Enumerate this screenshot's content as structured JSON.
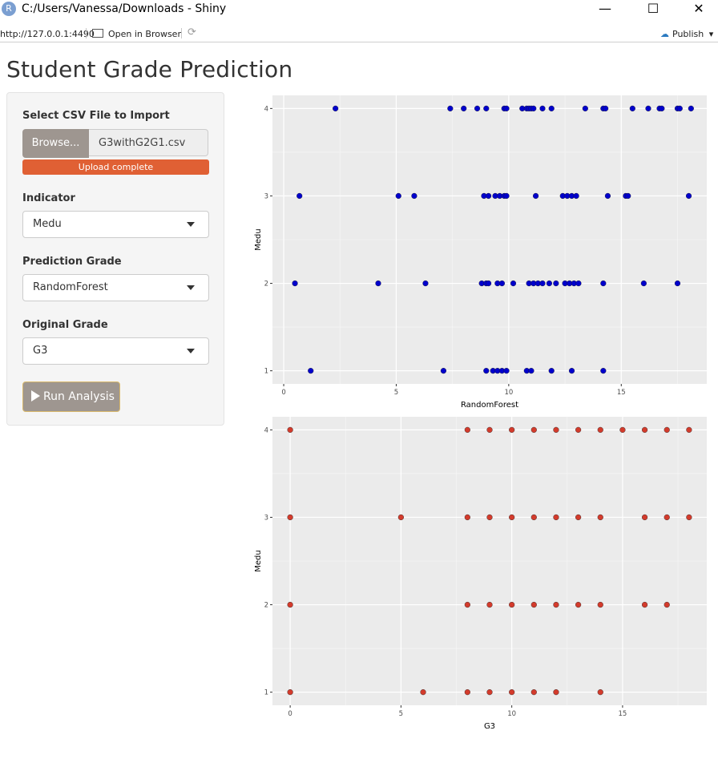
{
  "window": {
    "title": "C:/Users/Vanessa/Downloads - Shiny",
    "app_icon_letter": "R",
    "minimize": "—",
    "maximize": "☐",
    "close": "✕"
  },
  "toolbar": {
    "url": "http://127.0.0.1:4490",
    "open_in_browser": "Open in Browser",
    "publish": "Publish",
    "publish_caret": "▾"
  },
  "page": {
    "title": "Student Grade Prediction"
  },
  "sidebar": {
    "file_label": "Select CSV File to Import",
    "browse_label": "Browse...",
    "file_name": "G3withG2G1.csv",
    "progress_text": "Upload complete",
    "indicator_label": "Indicator",
    "indicator_value": "Medu",
    "prediction_label": "Prediction Grade",
    "prediction_value": "RandomForest",
    "original_label": "Original Grade",
    "original_value": "G3",
    "run_label": "Run Analysis"
  },
  "colors": {
    "accent_progress": "#e06034",
    "button": "#9e9690",
    "blue_points": "#0000cc",
    "red_points": "#d33b2c",
    "panel_bg": "#ebebeb"
  },
  "chart_data": [
    {
      "type": "scatter",
      "xlabel": "RandomForest",
      "ylabel": "Medu",
      "xlim": [
        -0.5,
        18.8
      ],
      "ylim": [
        0.85,
        4.15
      ],
      "xticks": [
        0,
        5,
        10,
        15
      ],
      "yticks": [
        1,
        2,
        3,
        4
      ],
      "color": "#0000cc",
      "points": [
        [
          2.3,
          4
        ],
        [
          7.4,
          4
        ],
        [
          8.0,
          4
        ],
        [
          8.6,
          4
        ],
        [
          9.0,
          4
        ],
        [
          9.8,
          4
        ],
        [
          9.9,
          4
        ],
        [
          10.6,
          4
        ],
        [
          10.8,
          4
        ],
        [
          10.9,
          4
        ],
        [
          11.0,
          4
        ],
        [
          11.1,
          4
        ],
        [
          11.5,
          4
        ],
        [
          11.9,
          4
        ],
        [
          13.4,
          4
        ],
        [
          14.2,
          4
        ],
        [
          14.3,
          4
        ],
        [
          15.5,
          4
        ],
        [
          16.2,
          4
        ],
        [
          16.7,
          4
        ],
        [
          16.8,
          4
        ],
        [
          17.5,
          4
        ],
        [
          17.6,
          4
        ],
        [
          18.1,
          4
        ],
        [
          0.7,
          3
        ],
        [
          5.1,
          3
        ],
        [
          5.8,
          3
        ],
        [
          8.9,
          3
        ],
        [
          9.1,
          3
        ],
        [
          9.4,
          3
        ],
        [
          9.6,
          3
        ],
        [
          9.8,
          3
        ],
        [
          9.9,
          3
        ],
        [
          11.2,
          3
        ],
        [
          12.4,
          3
        ],
        [
          12.6,
          3
        ],
        [
          12.8,
          3
        ],
        [
          13.0,
          3
        ],
        [
          14.4,
          3
        ],
        [
          15.2,
          3
        ],
        [
          15.3,
          3
        ],
        [
          18.0,
          3
        ],
        [
          0.5,
          2
        ],
        [
          4.2,
          2
        ],
        [
          6.3,
          2
        ],
        [
          8.8,
          2
        ],
        [
          9.0,
          2
        ],
        [
          9.1,
          2
        ],
        [
          9.5,
          2
        ],
        [
          9.7,
          2
        ],
        [
          10.2,
          2
        ],
        [
          10.9,
          2
        ],
        [
          11.1,
          2
        ],
        [
          11.3,
          2
        ],
        [
          11.5,
          2
        ],
        [
          11.8,
          2
        ],
        [
          12.1,
          2
        ],
        [
          12.5,
          2
        ],
        [
          12.7,
          2
        ],
        [
          12.9,
          2
        ],
        [
          13.1,
          2
        ],
        [
          14.2,
          2
        ],
        [
          16.0,
          2
        ],
        [
          17.5,
          2
        ],
        [
          1.2,
          1
        ],
        [
          7.1,
          1
        ],
        [
          9.0,
          1
        ],
        [
          9.3,
          1
        ],
        [
          9.5,
          1
        ],
        [
          9.7,
          1
        ],
        [
          9.9,
          1
        ],
        [
          10.8,
          1
        ],
        [
          11.0,
          1
        ],
        [
          11.9,
          1
        ],
        [
          12.8,
          1
        ],
        [
          14.2,
          1
        ]
      ]
    },
    {
      "type": "scatter",
      "xlabel": "G3",
      "ylabel": "Medu",
      "xlim": [
        -0.8,
        18.8
      ],
      "ylim": [
        0.85,
        4.15
      ],
      "xticks": [
        0,
        5,
        10,
        15
      ],
      "yticks": [
        1,
        2,
        3,
        4
      ],
      "color": "#d33b2c",
      "points": [
        [
          0,
          4
        ],
        [
          8,
          4
        ],
        [
          9,
          4
        ],
        [
          10,
          4
        ],
        [
          11,
          4
        ],
        [
          12,
          4
        ],
        [
          13,
          4
        ],
        [
          14,
          4
        ],
        [
          15,
          4
        ],
        [
          16,
          4
        ],
        [
          17,
          4
        ],
        [
          18,
          4
        ],
        [
          0,
          3
        ],
        [
          5,
          3
        ],
        [
          8,
          3
        ],
        [
          9,
          3
        ],
        [
          10,
          3
        ],
        [
          11,
          3
        ],
        [
          12,
          3
        ],
        [
          13,
          3
        ],
        [
          14,
          3
        ],
        [
          16,
          3
        ],
        [
          17,
          3
        ],
        [
          18,
          3
        ],
        [
          0,
          2
        ],
        [
          8,
          2
        ],
        [
          9,
          2
        ],
        [
          10,
          2
        ],
        [
          11,
          2
        ],
        [
          12,
          2
        ],
        [
          13,
          2
        ],
        [
          14,
          2
        ],
        [
          16,
          2
        ],
        [
          17,
          2
        ],
        [
          0,
          1
        ],
        [
          6,
          1
        ],
        [
          8,
          1
        ],
        [
          9,
          1
        ],
        [
          10,
          1
        ],
        [
          11,
          1
        ],
        [
          12,
          1
        ],
        [
          14,
          1
        ]
      ]
    }
  ]
}
